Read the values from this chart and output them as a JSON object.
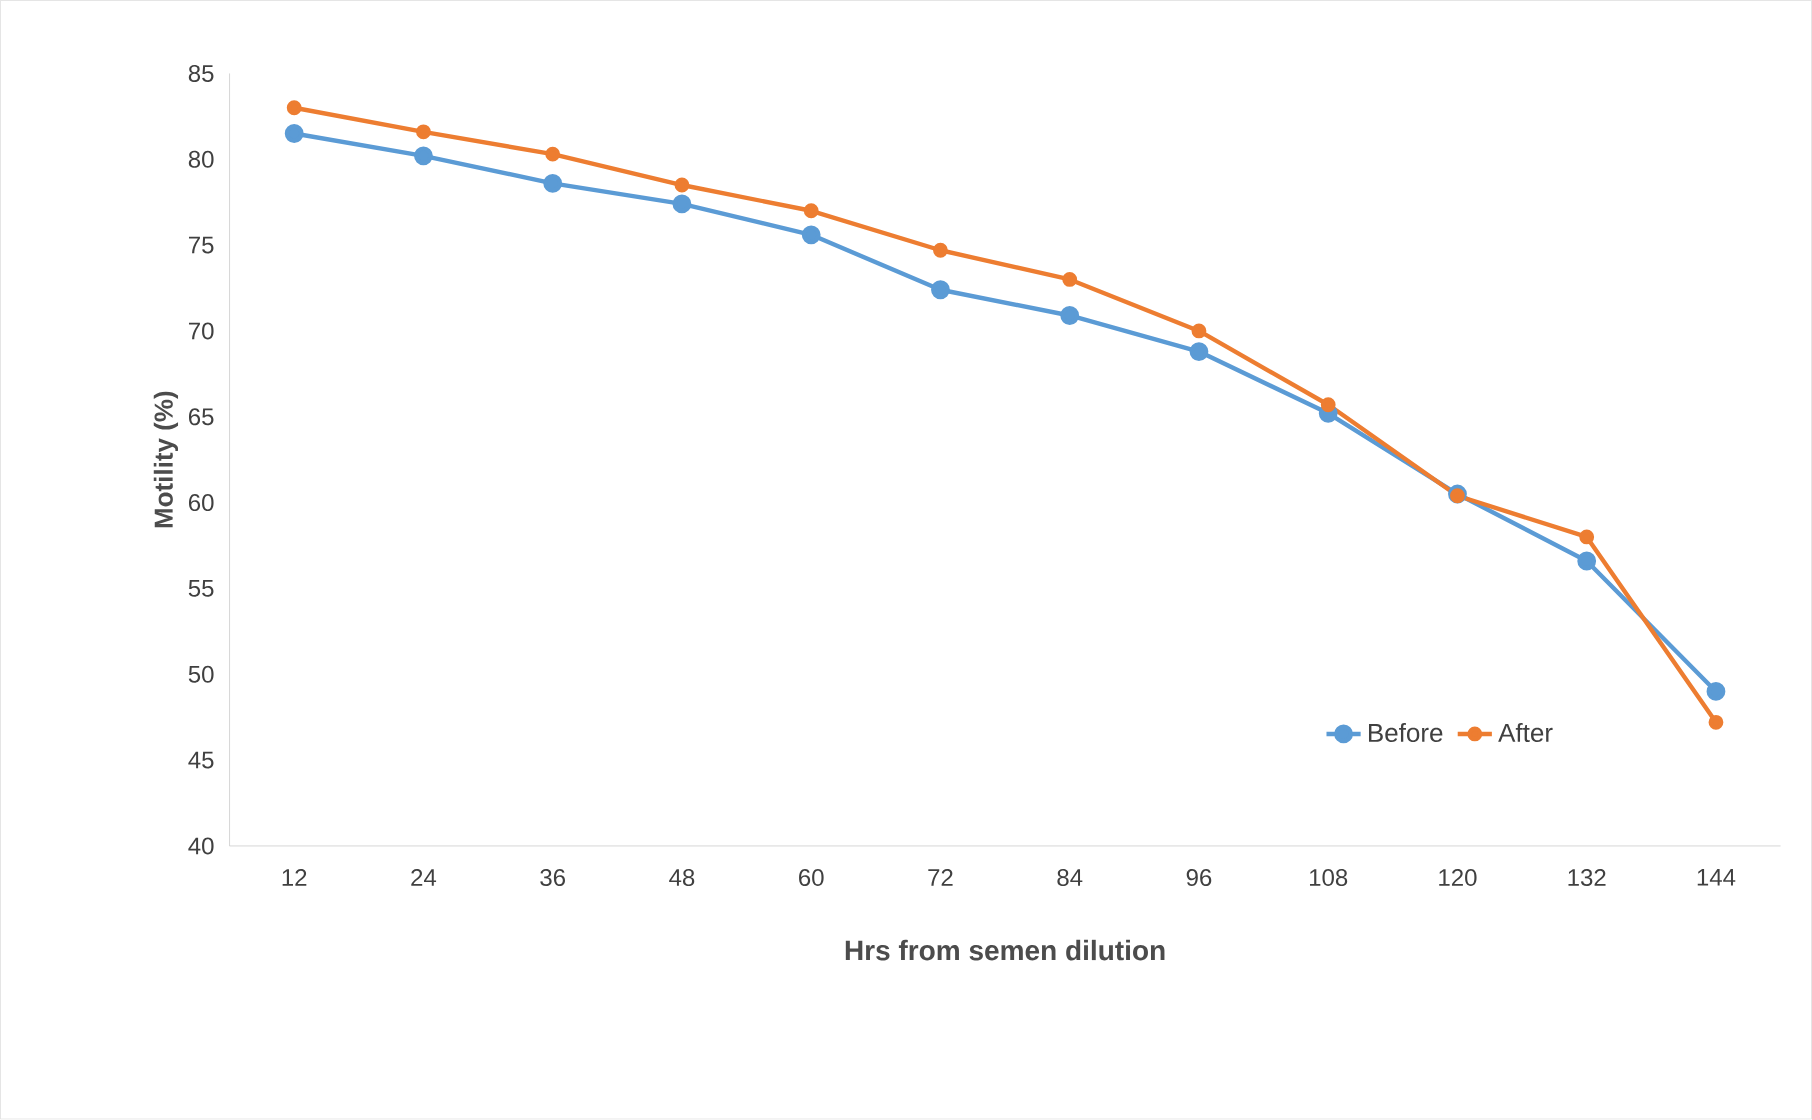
{
  "chart_data": {
    "type": "line",
    "xlabel": "Hrs from semen dilution",
    "ylabel": "Motility (%)",
    "categories": [
      "12",
      "24",
      "36",
      "48",
      "60",
      "72",
      "84",
      "96",
      "108",
      "120",
      "132",
      "144"
    ],
    "series": [
      {
        "name": "Before",
        "color": "#5b9bd5",
        "values": [
          81.5,
          80.2,
          78.6,
          77.4,
          75.6,
          72.4,
          70.9,
          68.8,
          65.2,
          60.5,
          56.6,
          49.0
        ]
      },
      {
        "name": "After",
        "color": "#ed7d31",
        "values": [
          83.0,
          81.6,
          80.3,
          78.5,
          77.0,
          74.7,
          73.0,
          70.0,
          65.7,
          60.4,
          58.0,
          47.2
        ]
      }
    ],
    "ylim": [
      40,
      85
    ],
    "yticks": [
      40,
      45,
      50,
      55,
      60,
      65,
      70,
      75,
      80,
      85
    ],
    "grid": false,
    "legend": "bottom right",
    "marker": "circle",
    "line_style": "solid"
  }
}
